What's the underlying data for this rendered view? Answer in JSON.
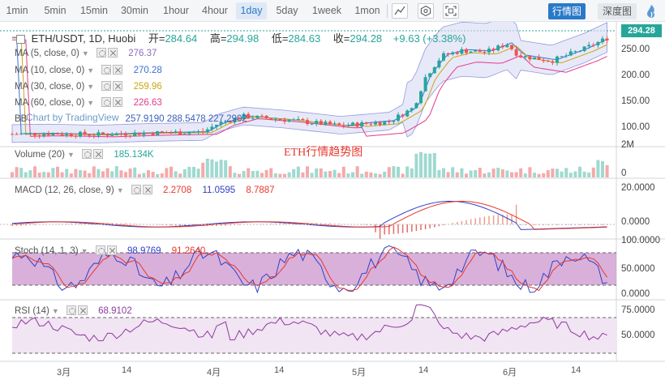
{
  "toolbar": {
    "timeframes": [
      "1min",
      "5min",
      "15min",
      "30min",
      "1hour",
      "4hour",
      "1day",
      "5day",
      "1week",
      "1mon"
    ],
    "active_timeframe": "1day",
    "chart_view_label": "行情图",
    "depth_view_label": "深度图"
  },
  "main": {
    "symbol": "ETH/USDT, 1D, Huobi",
    "open_label": "开=",
    "open": "284.64",
    "high_label": "高=",
    "high": "294.98",
    "low_label": "低=",
    "low": "284.63",
    "close_label": "收=",
    "close": "294.28",
    "change": "+9.63 (+3.38%)",
    "last_price": "294.28",
    "axis": [
      "250.00",
      "200.00",
      "150.00",
      "100.00"
    ],
    "indicators": [
      {
        "name": "MA (5, close, 0)",
        "value": "276.37",
        "color": "#8e6bbf"
      },
      {
        "name": "MA (10, close, 0)",
        "value": "270.28",
        "color": "#3a6fd8"
      },
      {
        "name": "MA (30, close, 0)",
        "value": "259.96",
        "color": "#c8a814"
      },
      {
        "name": "MA (60, close, 0)",
        "value": "226.63",
        "color": "#e23a8a"
      }
    ],
    "bb_label": "BB",
    "bb_values": "257.9190 288.5478 227.2902",
    "watermark": "Chart by TradingView",
    "chart_title": "ETH行情趋势图"
  },
  "volume": {
    "name": "Volume (20)",
    "value": "185.134K",
    "axis": [
      "2M",
      "0"
    ]
  },
  "macd": {
    "name": "MACD (12, 26, close, 9)",
    "values": [
      "2.2708",
      "11.0595",
      "8.7887"
    ],
    "axis": [
      "20.0000",
      "0.0000"
    ]
  },
  "stoch": {
    "name": "Stoch (14, 1, 3)",
    "values": [
      "98.9769",
      "91.2640"
    ],
    "axis": [
      "100.0000",
      "50.0000",
      "0.0000"
    ]
  },
  "rsi": {
    "name": "RSI (14)",
    "value": "68.9102",
    "axis": [
      "75.0000",
      "50.0000"
    ]
  },
  "dates": [
    "3月",
    "14",
    "4月",
    "14",
    "5月",
    "14",
    "6月",
    "14"
  ],
  "colors": {
    "up": "#26a69a",
    "down": "#ef5350",
    "accent": "#2a79c9",
    "stoch_band": "#c98ecb",
    "rsi_band": "#efe1f2"
  }
}
